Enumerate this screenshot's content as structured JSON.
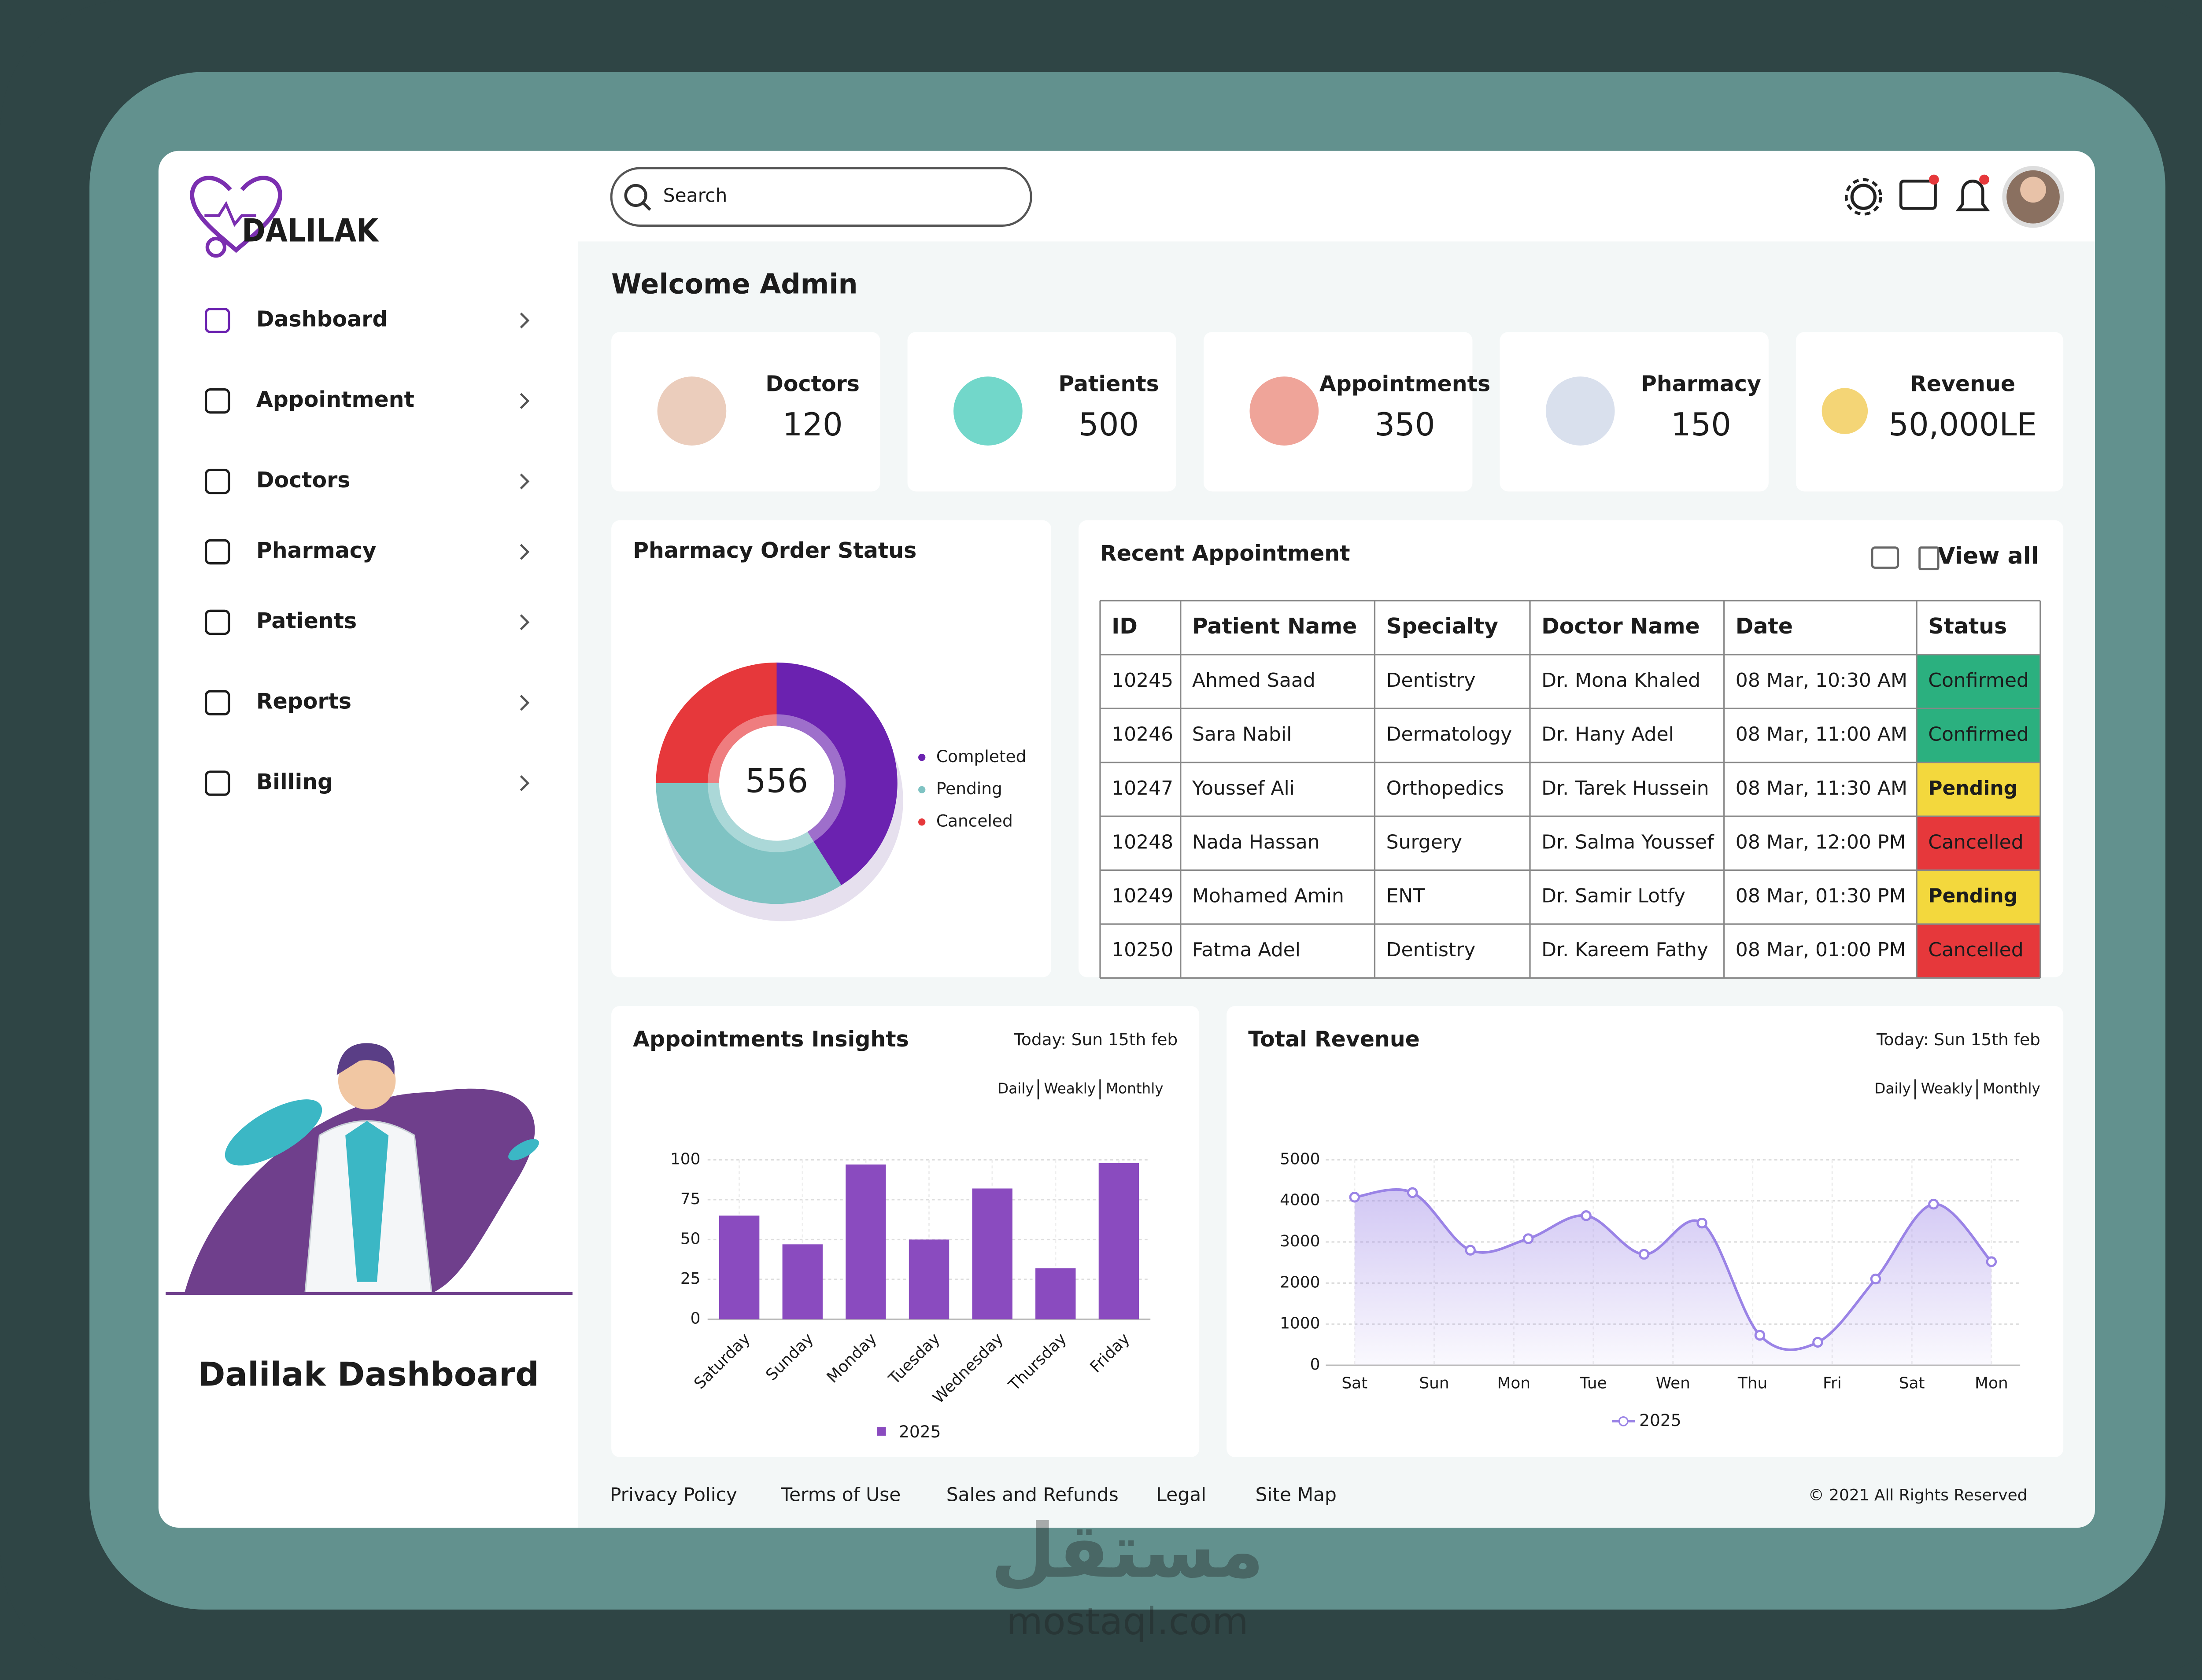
{
  "brand": "DALILAK",
  "search_placeholder": "Search",
  "active_nav": 0,
  "nav": [
    "Dashboard",
    "Appointment",
    "Doctors",
    "Pharmacy",
    "Patients",
    "Reports",
    "Billing"
  ],
  "sidebar_caption": "Dalilak Dashboard",
  "welcome": "Welcome Admin",
  "stats": [
    {
      "label": "Doctors",
      "value": "120"
    },
    {
      "label": "Patients",
      "value": "500"
    },
    {
      "label": "Appointments",
      "value": "350"
    },
    {
      "label": "Pharmacy",
      "value": "150"
    },
    {
      "label": "Revenue",
      "value": "50,000LE"
    }
  ],
  "table": {
    "title": "Recent Appointment",
    "action": "View all",
    "columns": [
      "ID",
      "Patient Name",
      "Specialty",
      "Doctor Name",
      "Date",
      "Status"
    ],
    "rows": [
      [
        "10245",
        "Ahmed Saad",
        "Dentistry",
        "Dr. Mona Khaled",
        "08 Mar, 10:30 AM",
        "Confirmed"
      ],
      [
        "10246",
        "Sara Nabil",
        "Dermatology",
        "Dr. Hany Adel",
        "08 Mar, 11:00 AM",
        "Confirmed"
      ],
      [
        "10247",
        "Youssef Ali",
        "Orthopedics",
        "Dr. Tarek Hussein",
        "08 Mar, 11:30 AM",
        "Pending"
      ],
      [
        "10248",
        "Nada Hassan",
        "Surgery",
        "Dr. Salma Youssef",
        "08 Mar, 12:00 PM",
        "Cancelled"
      ],
      [
        "10249",
        "Mohamed Amin",
        "ENT",
        "Dr. Samir Lotfy",
        "08 Mar, 01:30 PM",
        "Pending"
      ],
      [
        "10250",
        "Fatma Adel",
        "Dentistry",
        "Dr. Kareem Fathy",
        "08 Mar, 01:00 PM",
        "Cancelled"
      ]
    ],
    "status_colors": {
      "Confirmed": "#2bb07f",
      "Pending": "#f3d83d",
      "Cancelled": "#e6383b"
    }
  },
  "chart_data": [
    {
      "type": "donut",
      "title": "Pharmacy Order Status",
      "center_label": "556",
      "categories": [
        "Completed",
        "Pending",
        "Canceled"
      ],
      "values": [
        41,
        34,
        25
      ],
      "colors": [
        "#6b22b0",
        "#7fc3c3",
        "#e6383b"
      ]
    },
    {
      "type": "bar",
      "title": "Appointments Insights",
      "subtitle": "Today: Sun 15th feb",
      "periods": [
        "Daily",
        "Weakly",
        "Monthly"
      ],
      "active_period": 0,
      "categories": [
        "Saturday",
        "Sunday",
        "Monday",
        "Tuesday",
        "Wednesday",
        "Thursday",
        "Friday"
      ],
      "highlight": 1,
      "series": [
        {
          "name": "2025",
          "color": "#8a4bbf",
          "values": [
            65,
            47,
            97,
            50,
            82,
            32,
            98
          ]
        }
      ],
      "ylim": [
        0,
        100
      ],
      "yticks": [
        0,
        25,
        50,
        75,
        100
      ],
      "grid": true
    },
    {
      "type": "line",
      "title": "Total Revenue",
      "subtitle": "Today: Sun 15th feb",
      "periods": [
        "Daily",
        "Weakly",
        "Monthly"
      ],
      "active_period": 0,
      "x": [
        0,
        1,
        2,
        3,
        4,
        5,
        6,
        7,
        8,
        9,
        10,
        11
      ],
      "xlim": [
        0,
        11
      ],
      "xticks": [
        {
          "value": 0,
          "label": "Sat"
        },
        {
          "value": 1.375,
          "label": "Sun"
        },
        {
          "value": 2.75,
          "label": "Mon"
        },
        {
          "value": 4.125,
          "label": "Tue"
        },
        {
          "value": 5.5,
          "label": "Wen"
        },
        {
          "value": 6.875,
          "label": "Thu"
        },
        {
          "value": 8.25,
          "label": "Fri"
        },
        {
          "value": 9.625,
          "label": "Sat"
        },
        {
          "value": 11,
          "label": "Mon"
        }
      ],
      "highlight": 1,
      "series": [
        {
          "name": "2025",
          "color": "#9a83e6",
          "values": [
            4090,
            4200,
            2800,
            3080,
            3640,
            2700,
            3460,
            730,
            560,
            2100,
            3920,
            2520
          ]
        }
      ],
      "ylim": [
        0,
        5000
      ],
      "yticks": [
        0,
        1000,
        2000,
        3000,
        4000,
        5000
      ],
      "grid": true
    }
  ],
  "footer": {
    "links": [
      "Privacy Policy",
      "Terms of Use",
      "Sales and Refunds",
      "Legal",
      "Site Map"
    ],
    "copyright": "© 2021 All Rights Reserved"
  },
  "watermark": [
    "مستقل",
    "mostaql.com"
  ]
}
